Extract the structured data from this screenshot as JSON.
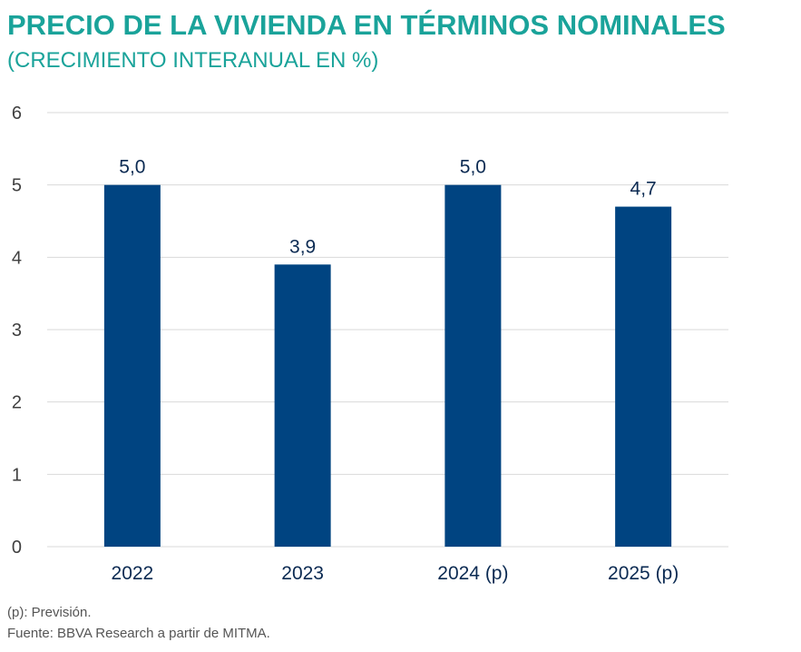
{
  "colors": {
    "title": "#1aa39a",
    "bar": "#004481",
    "grid": "#d9d9d9",
    "axis_text": "#404040",
    "label_text": "#0b2a52"
  },
  "header": {
    "title": "PRECIO DE LA VIVIENDA EN TÉRMINOS NOMINALES",
    "subtitle": "(CRECIMIENTO INTERANUAL EN %)"
  },
  "footer": {
    "note": "(p): Previsión.",
    "source": "Fuente: BBVA Research a partir de MITMA."
  },
  "chart_data": {
    "type": "bar",
    "title": "PRECIO DE LA VIVIENDA EN TÉRMINOS NOMINALES",
    "subtitle": "(CRECIMIENTO INTERANUAL EN %)",
    "categories": [
      "2022",
      "2023",
      "2024 (p)",
      "2025 (p)"
    ],
    "values": [
      5.0,
      3.9,
      5.0,
      4.7
    ],
    "value_labels": [
      "5,0",
      "3,9",
      "5,0",
      "4,7"
    ],
    "yticks": [
      "0",
      "1",
      "2",
      "3",
      "4",
      "5",
      "6"
    ],
    "ylim": [
      0,
      6
    ],
    "xlabel": "",
    "ylabel": "",
    "grid": true,
    "legend": "none"
  }
}
